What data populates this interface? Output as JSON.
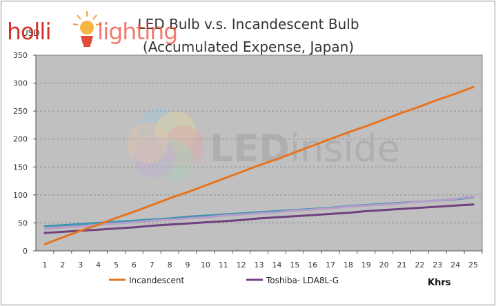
{
  "logos": {
    "hollin_left": "holli",
    "hollin_right": "lighting",
    "watermark_led": "LED",
    "watermark_inside": "inside"
  },
  "colors": {
    "plot_bg": "#c0c0c0",
    "grid": "#8a8a8a",
    "incandescent": "#e8731f",
    "toshiba": "#70407f",
    "led_blue": "#3d95b0",
    "led_light_purple": "#b89cc9"
  },
  "chart_data": {
    "type": "line",
    "title": "LED Bulb v.s. Incandescent Bulb",
    "subtitle": "(Accumulated Expense, Japan)",
    "ylabel": "USD",
    "xlabel": "Khrs",
    "ylim": [
      0,
      350
    ],
    "yticks": [
      0,
      50,
      100,
      150,
      200,
      250,
      300,
      350
    ],
    "grid": true,
    "legend_position": "bottom",
    "categories": [
      "1",
      "2",
      "3",
      "4",
      "5",
      "6",
      "7",
      "8",
      "9",
      "10",
      "11",
      "12",
      "13",
      "14",
      "15",
      "16",
      "17",
      "18",
      "19",
      "20",
      "21",
      "22",
      "23",
      "24",
      "25"
    ],
    "series": [
      {
        "name": "Incandescent",
        "color": "#e8731f",
        "values": [
          12,
          24,
          36,
          47,
          59,
          70,
          82,
          94,
          105,
          117,
          129,
          141,
          153,
          164,
          176,
          188,
          200,
          212,
          223,
          235,
          247,
          258,
          270,
          281,
          293
        ]
      },
      {
        "name": "Toshiba- LDA8L-G",
        "color": "#70407f",
        "values": [
          32,
          34,
          36,
          38,
          40,
          42,
          45,
          47,
          49,
          51,
          53,
          55,
          58,
          60,
          62,
          64,
          66,
          68,
          71,
          73,
          75,
          77,
          79,
          81,
          83
        ]
      },
      {
        "name": "",
        "color": "#3d95b0",
        "values": [
          44,
          46,
          48,
          50,
          52,
          54,
          56,
          58,
          61,
          63,
          65,
          67,
          69,
          71,
          73,
          75,
          77,
          80,
          82,
          84,
          86,
          88,
          90,
          92,
          96
        ]
      },
      {
        "name": "",
        "color": "#b89cc9",
        "values": [
          39,
          42,
          44,
          47,
          49,
          51,
          54,
          56,
          58,
          60,
          63,
          65,
          67,
          69,
          72,
          74,
          76,
          79,
          81,
          83,
          85,
          88,
          90,
          93,
          97
        ]
      }
    ]
  }
}
